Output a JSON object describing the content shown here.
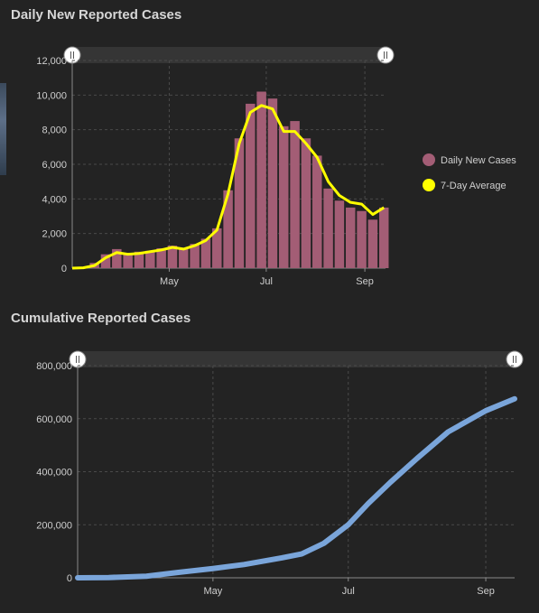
{
  "titles": {
    "daily": "Daily New Reported Cases",
    "cumulative": "Cumulative Reported Cases"
  },
  "colors": {
    "background": "#232323",
    "daily_bars": "#a35d75",
    "seven_day_line": "#ffff00",
    "cumulative_line": "#7aa5da",
    "slider_track": "#353535",
    "axis": "#8a8a8a",
    "grid": "#4a4a4a"
  },
  "chart_data": [
    {
      "type": "bar",
      "title": "Daily New Reported Cases",
      "x_start": "2020-03-01",
      "x_end": "2020-09-14",
      "x_ticks": [
        {
          "date": "2020-05-01",
          "label": "May"
        },
        {
          "date": "2020-07-01",
          "label": "Jul"
        },
        {
          "date": "2020-09-01",
          "label": "Sep"
        }
      ],
      "ylim": [
        0,
        12000
      ],
      "y_ticks": [
        0,
        2000,
        4000,
        6000,
        8000,
        10000,
        12000
      ],
      "y_tick_labels": [
        "0",
        "2,000",
        "4,000",
        "6,000",
        "8,000",
        "10,000",
        "12,000"
      ],
      "grid": true,
      "legend_position": "right",
      "series": [
        {
          "name": "Daily New Cases",
          "kind": "bars",
          "x": [
            "2020-03-01",
            "2020-03-08",
            "2020-03-15",
            "2020-03-22",
            "2020-03-29",
            "2020-04-05",
            "2020-04-12",
            "2020-04-19",
            "2020-04-26",
            "2020-05-03",
            "2020-05-10",
            "2020-05-17",
            "2020-05-24",
            "2020-05-31",
            "2020-06-07",
            "2020-06-14",
            "2020-06-21",
            "2020-06-28",
            "2020-07-05",
            "2020-07-12",
            "2020-07-19",
            "2020-07-26",
            "2020-08-02",
            "2020-08-09",
            "2020-08-16",
            "2020-08-23",
            "2020-08-30",
            "2020-09-06",
            "2020-09-13"
          ],
          "values": [
            0,
            50,
            300,
            800,
            1100,
            800,
            950,
            1000,
            1150,
            1300,
            1100,
            1400,
            1700,
            2300,
            4500,
            7500,
            9500,
            10200,
            9800,
            8200,
            8500,
            7500,
            6500,
            4600,
            3900,
            3500,
            3300,
            2800,
            3500
          ]
        },
        {
          "name": "7-Day Average",
          "kind": "line",
          "x": [
            "2020-03-01",
            "2020-03-08",
            "2020-03-15",
            "2020-03-22",
            "2020-03-29",
            "2020-04-05",
            "2020-04-12",
            "2020-04-19",
            "2020-04-26",
            "2020-05-03",
            "2020-05-10",
            "2020-05-17",
            "2020-05-24",
            "2020-05-31",
            "2020-06-07",
            "2020-06-14",
            "2020-06-21",
            "2020-06-28",
            "2020-07-05",
            "2020-07-12",
            "2020-07-19",
            "2020-07-26",
            "2020-08-02",
            "2020-08-09",
            "2020-08-16",
            "2020-08-23",
            "2020-08-30",
            "2020-09-06",
            "2020-09-13"
          ],
          "values": [
            0,
            20,
            150,
            600,
            900,
            800,
            850,
            950,
            1050,
            1200,
            1100,
            1300,
            1600,
            2200,
            4300,
            7200,
            9000,
            9400,
            9200,
            7900,
            7900,
            7200,
            6400,
            5000,
            4200,
            3800,
            3700,
            3100,
            3500
          ]
        }
      ]
    },
    {
      "type": "line",
      "title": "Cumulative Reported Cases",
      "x_start": "2020-03-01",
      "x_end": "2020-09-14",
      "x_ticks": [
        {
          "date": "2020-05-01",
          "label": "May"
        },
        {
          "date": "2020-07-01",
          "label": "Jul"
        },
        {
          "date": "2020-09-01",
          "label": "Sep"
        }
      ],
      "ylim": [
        0,
        800000
      ],
      "y_ticks": [
        0,
        200000,
        400000,
        600000,
        800000
      ],
      "y_tick_labels": [
        "0",
        "200,000",
        "400,000",
        "600,000",
        "800,000"
      ],
      "grid": true,
      "series": [
        {
          "kind": "line",
          "x": [
            "2020-03-01",
            "2020-03-15",
            "2020-04-01",
            "2020-04-15",
            "2020-05-01",
            "2020-05-15",
            "2020-06-01",
            "2020-06-10",
            "2020-06-20",
            "2020-07-01",
            "2020-07-10",
            "2020-07-20",
            "2020-08-01",
            "2020-08-15",
            "2020-09-01",
            "2020-09-14"
          ],
          "values": [
            0,
            1000,
            6000,
            20000,
            35000,
            50000,
            75000,
            90000,
            130000,
            200000,
            280000,
            360000,
            450000,
            550000,
            630000,
            675000
          ]
        }
      ]
    }
  ]
}
